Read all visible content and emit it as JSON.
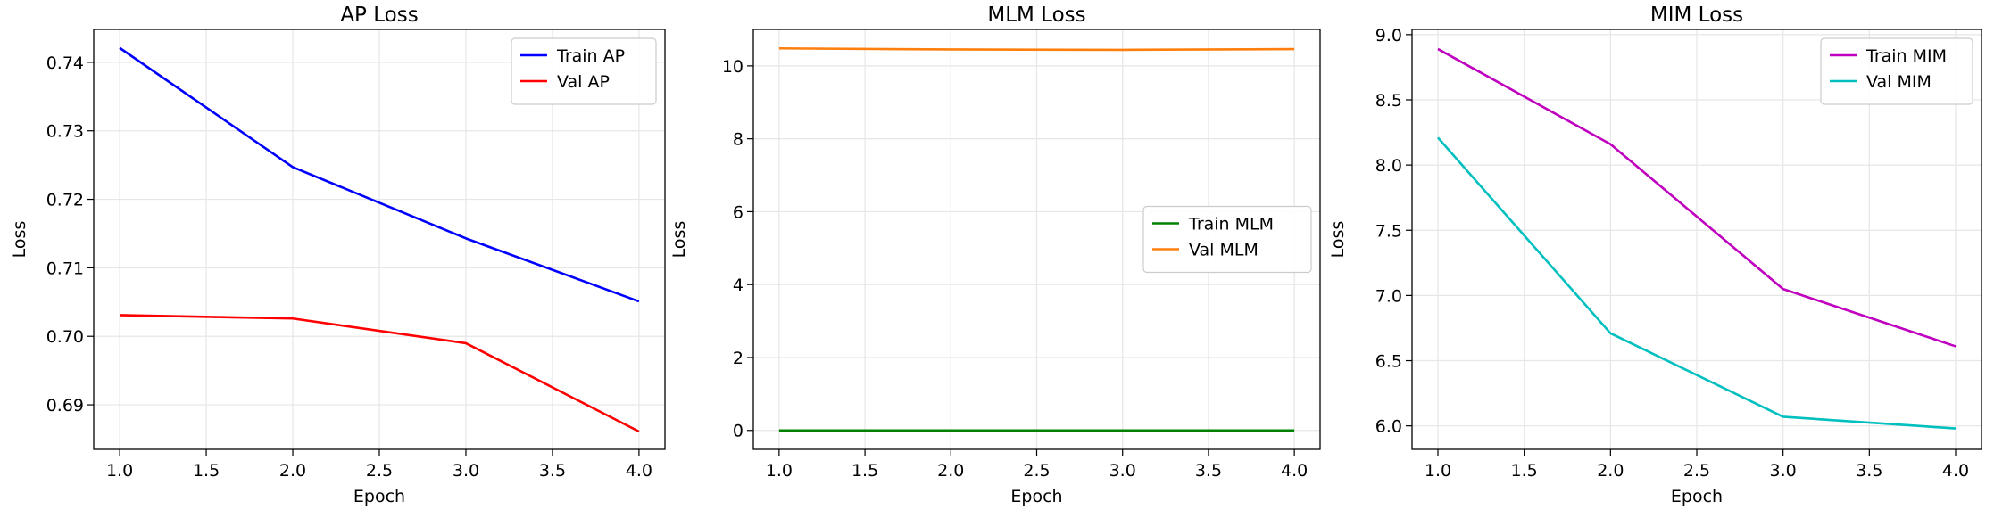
{
  "chart_data": [
    {
      "type": "line",
      "title": "AP Loss",
      "xlabel": "Epoch",
      "ylabel": "Loss",
      "xlim": [
        0.85,
        4.15
      ],
      "ylim": [
        0.6835,
        0.7448
      ],
      "xticks": [
        1.0,
        1.5,
        2.0,
        2.5,
        3.0,
        3.5,
        4.0
      ],
      "xtick_labels": [
        "1.0",
        "1.5",
        "2.0",
        "2.5",
        "3.0",
        "3.5",
        "4.0"
      ],
      "yticks": [
        0.69,
        0.7,
        0.71,
        0.72,
        0.73,
        0.74
      ],
      "ytick_labels": [
        "0.69",
        "0.70",
        "0.71",
        "0.72",
        "0.73",
        "0.74"
      ],
      "grid": true,
      "legend_position": "upper right",
      "x": [
        1,
        2,
        3,
        4
      ],
      "series": [
        {
          "name": "Train AP",
          "color": "#0000ff",
          "values": [
            0.7421,
            0.7247,
            0.7143,
            0.7051
          ]
        },
        {
          "name": "Val AP",
          "color": "#ff0000",
          "values": [
            0.7031,
            0.7026,
            0.699,
            0.6861
          ]
        }
      ]
    },
    {
      "type": "line",
      "title": "MLM Loss",
      "xlabel": "Epoch",
      "ylabel": "Loss",
      "xlim": [
        0.85,
        4.15
      ],
      "ylim": [
        -0.52,
        11.0
      ],
      "xticks": [
        1.0,
        1.5,
        2.0,
        2.5,
        3.0,
        3.5,
        4.0
      ],
      "xtick_labels": [
        "1.0",
        "1.5",
        "2.0",
        "2.5",
        "3.0",
        "3.5",
        "4.0"
      ],
      "yticks": [
        0,
        2,
        4,
        6,
        8,
        10
      ],
      "ytick_labels": [
        "0",
        "2",
        "4",
        "6",
        "8",
        "10"
      ],
      "grid": true,
      "legend_position": "center right",
      "x": [
        1,
        2,
        3,
        4
      ],
      "series": [
        {
          "name": "Train MLM",
          "color": "#008000",
          "values": [
            0.0,
            0.0,
            0.0,
            0.0
          ]
        },
        {
          "name": "Val MLM",
          "color": "#ff7f0e",
          "values": [
            10.48,
            10.45,
            10.44,
            10.46
          ]
        }
      ]
    },
    {
      "type": "line",
      "title": "MIM Loss",
      "xlabel": "Epoch",
      "ylabel": "Loss",
      "xlim": [
        0.85,
        4.15
      ],
      "ylim": [
        5.82,
        9.04
      ],
      "xticks": [
        1.0,
        1.5,
        2.0,
        2.5,
        3.0,
        3.5,
        4.0
      ],
      "xtick_labels": [
        "1.0",
        "1.5",
        "2.0",
        "2.5",
        "3.0",
        "3.5",
        "4.0"
      ],
      "yticks": [
        6.0,
        6.5,
        7.0,
        7.5,
        8.0,
        8.5,
        9.0
      ],
      "ytick_labels": [
        "6.0",
        "6.5",
        "7.0",
        "7.5",
        "8.0",
        "8.5",
        "9.0"
      ],
      "grid": true,
      "legend_position": "upper right",
      "x": [
        1,
        2,
        3,
        4
      ],
      "series": [
        {
          "name": "Train MIM",
          "color": "#bf00bf",
          "values": [
            8.89,
            8.16,
            7.05,
            6.61
          ]
        },
        {
          "name": "Val MIM",
          "color": "#00bfbf",
          "values": [
            8.21,
            6.71,
            6.07,
            5.98
          ]
        }
      ]
    }
  ]
}
